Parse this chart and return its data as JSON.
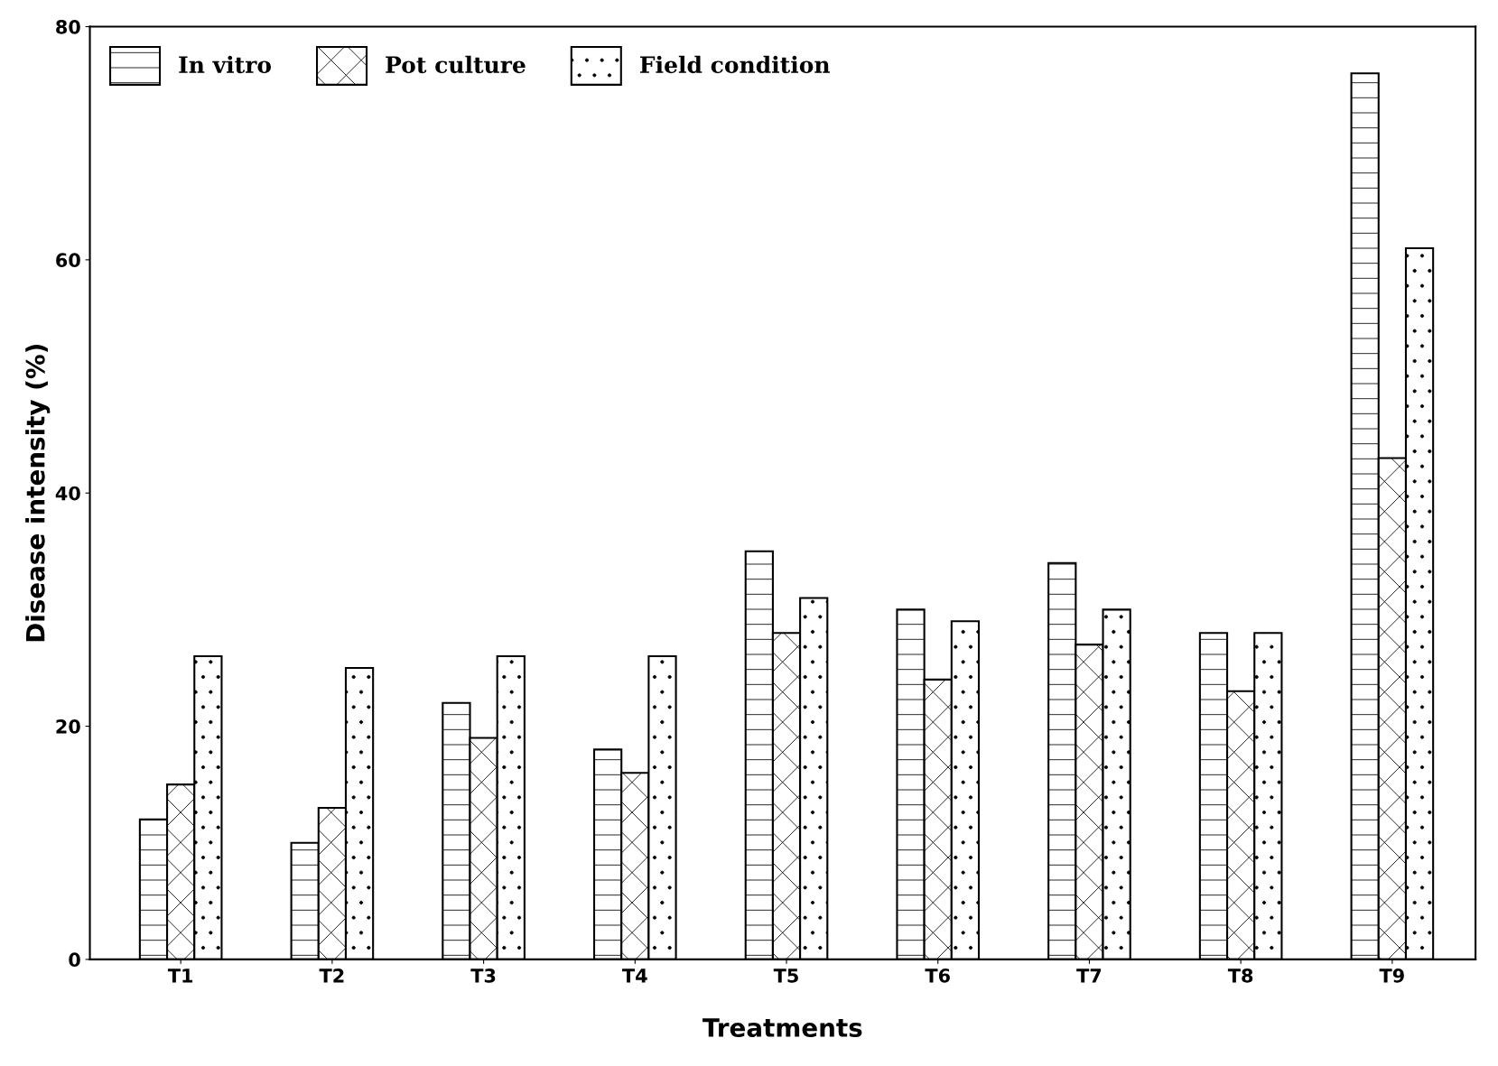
{
  "chart_data": {
    "type": "bar",
    "xlabel": "Treatments",
    "ylabel": "Disease intensity (%)",
    "categories": [
      "T1",
      "T2",
      "T3",
      "T4",
      "T5",
      "T6",
      "T7",
      "T8",
      "T9"
    ],
    "series": [
      {
        "name": "In vitro",
        "color": "#000000",
        "values": [
          12,
          10,
          22,
          18,
          35,
          30,
          34,
          28,
          76
        ]
      },
      {
        "name": "Pot culture",
        "color": "#000000",
        "values": [
          15,
          13,
          19,
          16,
          28,
          24,
          27,
          23,
          43
        ]
      },
      {
        "name": "Field condition",
        "color": "#000000",
        "values": [
          26,
          25,
          26,
          26,
          31,
          29,
          30,
          28,
          61
        ]
      }
    ],
    "ylim": [
      0,
      80
    ],
    "yticks": [
      0,
      20,
      40,
      60,
      80
    ],
    "grid": false,
    "legend": "top left"
  }
}
